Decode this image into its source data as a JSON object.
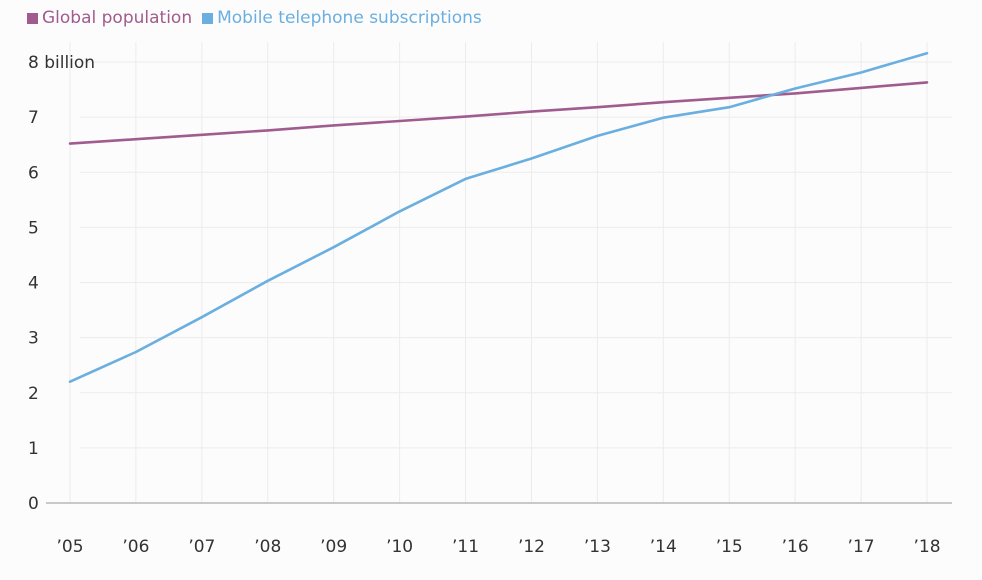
{
  "chart_data": {
    "type": "line",
    "title": "",
    "xlabel": "",
    "ylabel": "",
    "y_unit_label": "8 billion",
    "ylim": [
      0,
      8
    ],
    "yticks": [
      "0",
      "1",
      "2",
      "3",
      "4",
      "5",
      "6",
      "7"
    ],
    "categories": [
      "’05",
      "’06",
      "’07",
      "’08",
      "’09",
      "’10",
      "’11",
      "’12",
      "’13",
      "’14",
      "’15",
      "’16",
      "’17",
      "’18"
    ],
    "grid": true,
    "legend_position": "top-left",
    "series": [
      {
        "name": "Global population",
        "color": "#a05c8e",
        "values": [
          6.52,
          6.6,
          6.68,
          6.76,
          6.85,
          6.93,
          7.01,
          7.1,
          7.18,
          7.27,
          7.35,
          7.43,
          7.53,
          7.63
        ]
      },
      {
        "name": "Mobile telephone subscriptions",
        "color": "#6aafdf",
        "values": [
          2.2,
          2.74,
          3.37,
          4.03,
          4.64,
          5.29,
          5.88,
          6.25,
          6.66,
          6.99,
          7.18,
          7.52,
          7.81,
          8.16
        ]
      }
    ]
  }
}
